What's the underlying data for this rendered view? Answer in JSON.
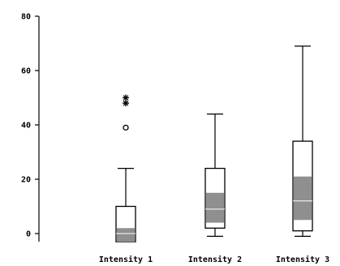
{
  "chart_data": {
    "type": "boxplot",
    "title": "",
    "xlabel": "",
    "ylabel": "",
    "ylim": [
      -3,
      80
    ],
    "yticks": [
      0,
      20,
      40,
      60,
      80
    ],
    "categories": [
      "Intensity 1",
      "Intensity 2",
      "Intensity 3"
    ],
    "boxes": [
      {
        "whisker_low": -3,
        "q1": -3,
        "median": 0,
        "q3": 10,
        "whisker_high": 24,
        "ci_low": -3,
        "ci_high": 2,
        "outliers": [
          {
            "value": 39,
            "symbol": "circle"
          },
          {
            "value": 48,
            "symbol": "star"
          },
          {
            "value": 50,
            "symbol": "star"
          }
        ]
      },
      {
        "whisker_low": -1,
        "q1": 2,
        "median": 9,
        "q3": 24,
        "whisker_high": 44,
        "ci_low": 4,
        "ci_high": 15,
        "outliers": []
      },
      {
        "whisker_low": -1,
        "q1": 1,
        "median": 12,
        "q3": 34,
        "whisker_high": 69,
        "ci_low": 5,
        "ci_high": 21,
        "outliers": []
      }
    ],
    "colors": {
      "ink": "#000000",
      "notch": "#8f8f8f",
      "background": "#ffffff"
    }
  }
}
